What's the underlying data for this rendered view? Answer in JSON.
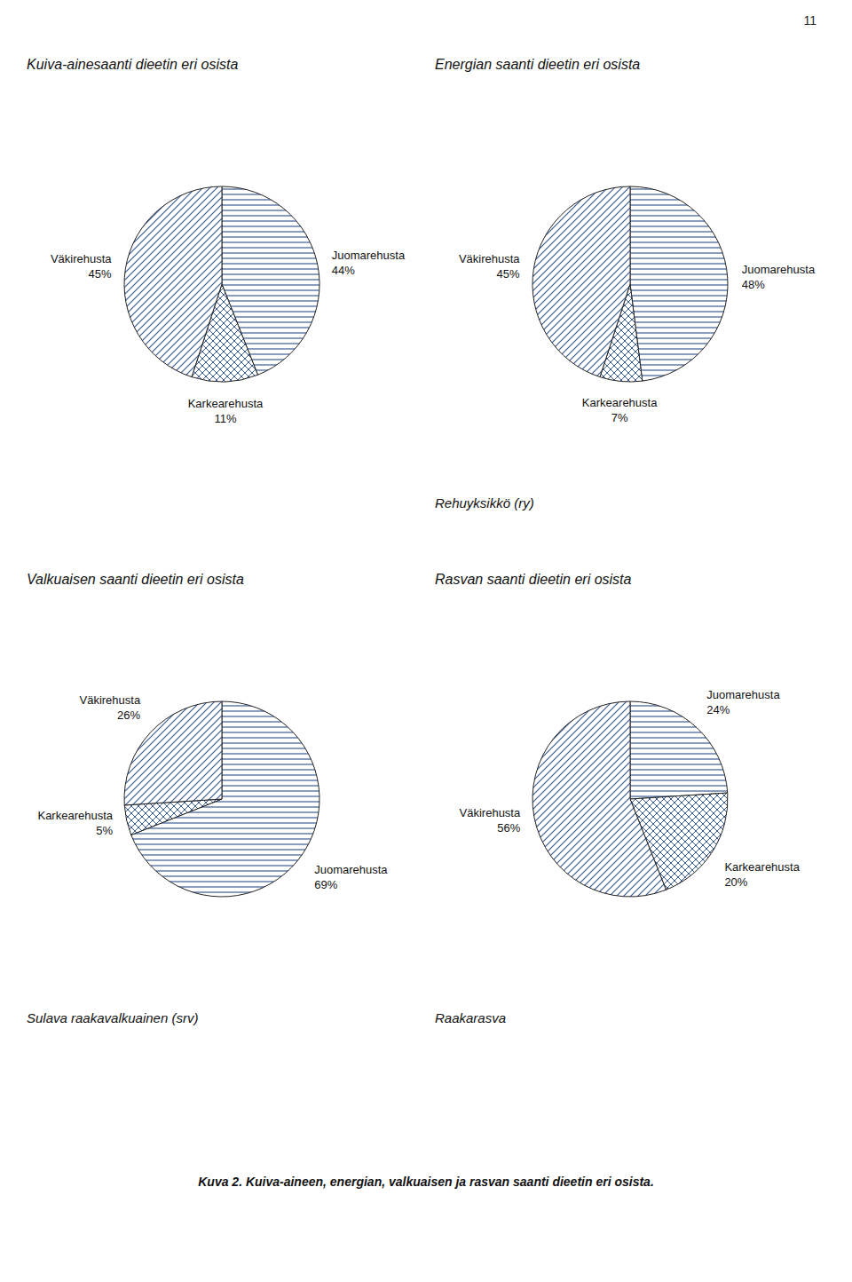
{
  "chart_data": [
    {
      "type": "pie",
      "title": "Kuiva-ainesaanti dieetin eri osista",
      "categories": [
        "Juomarehusta",
        "Karkearehusta",
        "Väkirehusta"
      ],
      "values": [
        44,
        11,
        45
      ],
      "value_labels": [
        "44%",
        "11%",
        "45%"
      ],
      "data_labels": true
    },
    {
      "type": "pie",
      "title": "Energian saanti dieetin eri osista",
      "subtitle": "Rehuyksikkö (ry)",
      "categories": [
        "Juomarehusta",
        "Karkearehusta",
        "Väkirehusta"
      ],
      "values": [
        48,
        7,
        45
      ],
      "value_labels": [
        "48%",
        "7%",
        "45%"
      ],
      "data_labels": true
    },
    {
      "type": "pie",
      "title": "Valkuaisen saanti dieetin eri osista",
      "subtitle": "Sulava raakavalkuainen (srv)",
      "categories": [
        "Juomarehusta",
        "Karkearehusta",
        "Väkirehusta"
      ],
      "values": [
        69,
        5,
        26
      ],
      "value_labels": [
        "69%",
        "5%",
        "26%"
      ],
      "data_labels": true
    },
    {
      "type": "pie",
      "title": "Rasvan saanti dieetin eri osista",
      "subtitle": "Raakarasva",
      "categories": [
        "Juomarehusta",
        "Karkearehusta",
        "Väkirehusta"
      ],
      "values": [
        24,
        20,
        56
      ],
      "value_labels": [
        "24%",
        "20%",
        "56%"
      ],
      "data_labels": true
    }
  ],
  "caption": "Kuva 2. Kuiva-aineen, energian, valkuaisen ja rasvan saanti dieetin eri osista.",
  "page_number": "11"
}
